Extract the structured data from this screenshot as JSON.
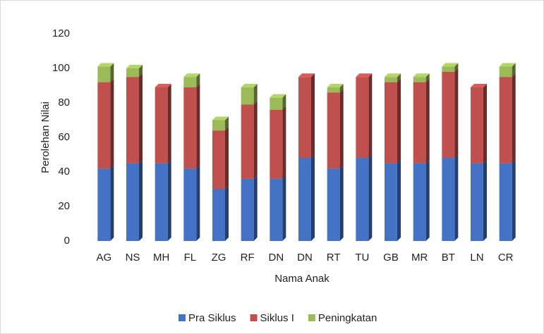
{
  "chart_data": {
    "type": "stacked_bar",
    "x_label": "Nama Anak",
    "y_label": "Perolehan Nilai",
    "categories": [
      "AG",
      "NS",
      "MH",
      "FL",
      "ZG",
      "RF",
      "DN",
      "DN",
      "RT",
      "TU",
      "GB",
      "MR",
      "BT",
      "LN",
      "CR"
    ],
    "series": [
      {
        "name": "Pra Siklus",
        "color": "#4472c4",
        "values": [
          42,
          45,
          45,
          42,
          30,
          36,
          36,
          48,
          42,
          48,
          45,
          45,
          48,
          45,
          45
        ]
      },
      {
        "name": "Siklus I",
        "color": "#c0504d",
        "values": [
          50,
          50,
          44,
          47,
          34,
          43,
          40,
          47,
          44,
          47,
          47,
          47,
          50,
          44,
          50
        ]
      },
      {
        "name": "Peningkatan",
        "color": "#9bbb59",
        "values": [
          9,
          5,
          0,
          6,
          6,
          10,
          7,
          0,
          3,
          0,
          3,
          3,
          3,
          0,
          6
        ]
      }
    ],
    "ylim": [
      0,
      120
    ],
    "yticks": [
      0,
      20,
      40,
      60,
      80,
      100,
      120
    ],
    "grid": false,
    "legend": "bottom"
  }
}
